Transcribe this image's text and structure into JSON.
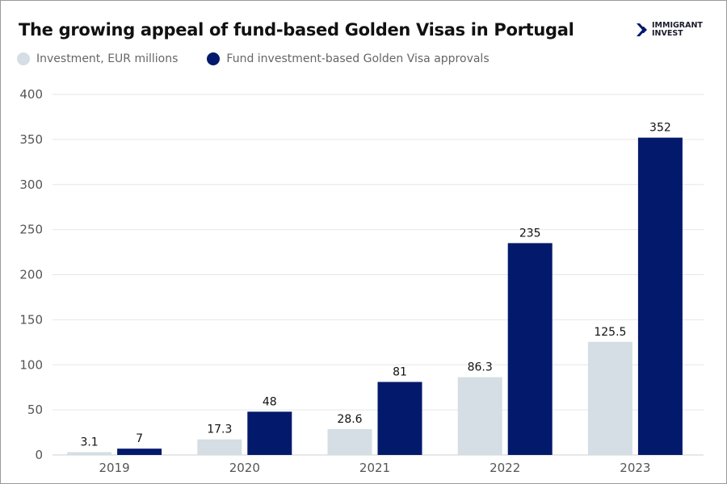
{
  "logo": {
    "line1": "IMMIGRANT",
    "line2": "INVEST"
  },
  "chart_data": {
    "type": "bar",
    "title": "The growing appeal of fund-based Golden Visas in Portugal",
    "categories": [
      "2019",
      "2020",
      "2021",
      "2022",
      "2023"
    ],
    "series": [
      {
        "name": "Investment, EUR millions",
        "values": [
          3.1,
          17.3,
          28.6,
          86.3,
          125.5
        ],
        "color": "#d4dee4",
        "labels": [
          "3.1",
          "17.3",
          "28.6",
          "86.3",
          "125.5"
        ]
      },
      {
        "name": "Fund investment-based Golden Visa approvals",
        "values": [
          7,
          48,
          81,
          235,
          352
        ],
        "color": "#03196c",
        "labels": [
          "7",
          "48",
          "81",
          "235",
          "352"
        ]
      }
    ],
    "ylim": [
      0,
      400
    ],
    "yticks": [
      "0",
      "50",
      "100",
      "150",
      "200",
      "250",
      "300",
      "350",
      "400"
    ],
    "grid": true,
    "legend": "top-left"
  }
}
